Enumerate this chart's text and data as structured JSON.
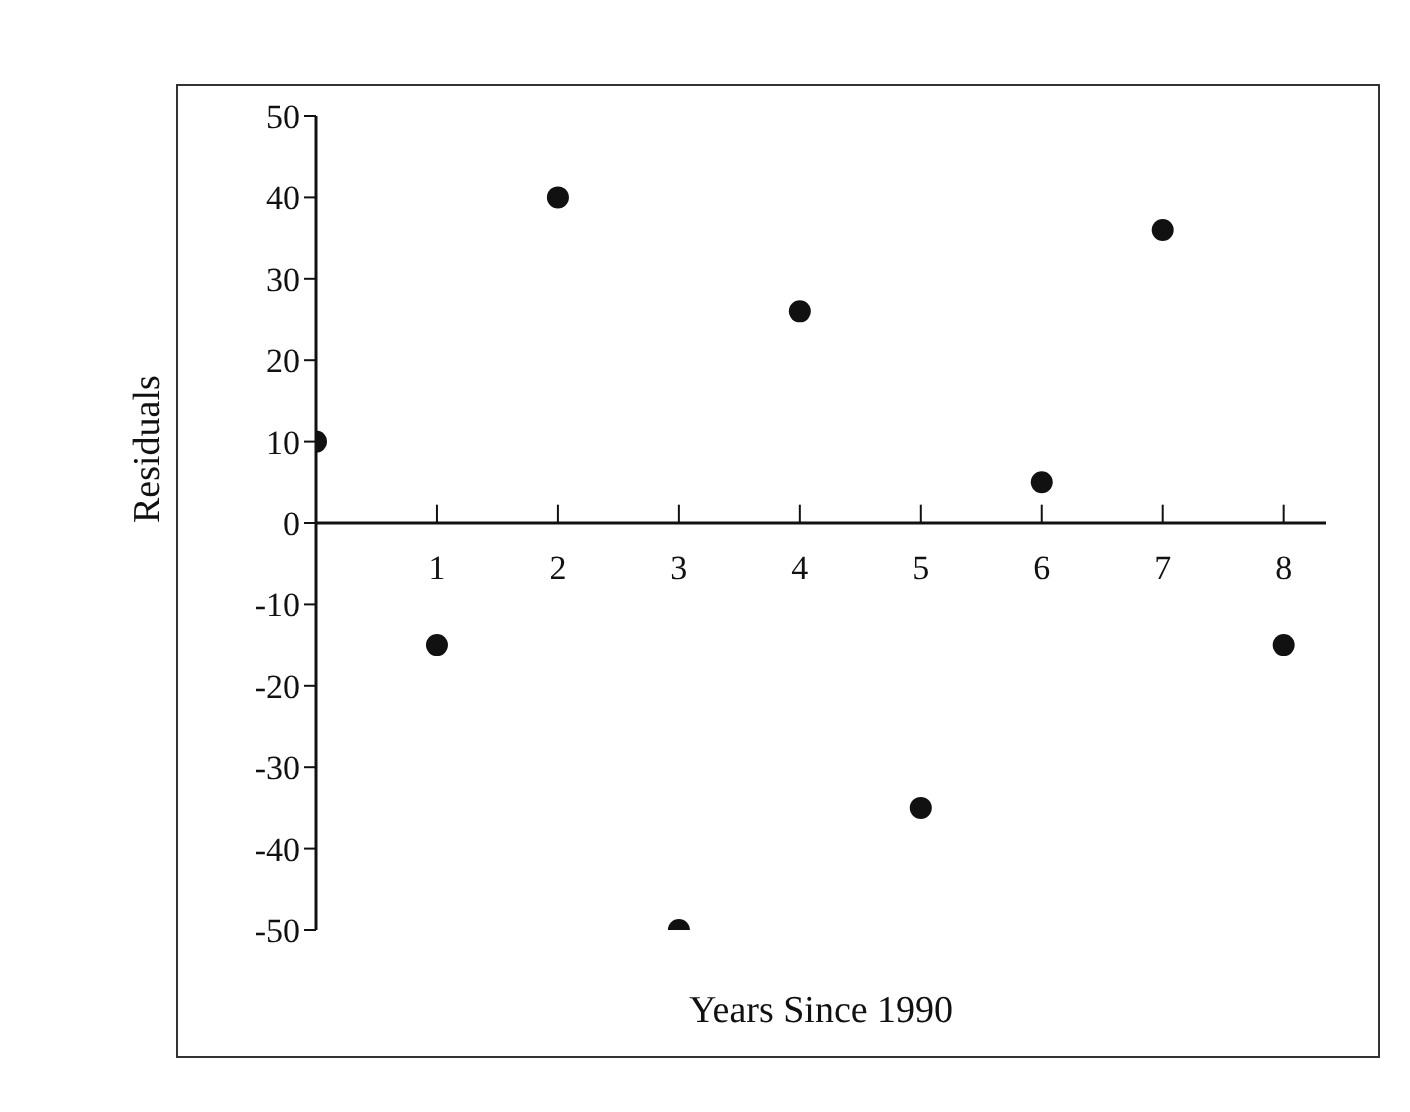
{
  "chart_data": {
    "type": "scatter",
    "xlabel": "Years Since 1990",
    "ylabel": "Residuals",
    "x": [
      0,
      1,
      2,
      3,
      4,
      5,
      6,
      7,
      8
    ],
    "series": [
      {
        "color": "#111111",
        "values": [
          10,
          -15,
          40,
          -50,
          26,
          -35,
          5,
          36,
          -15
        ]
      }
    ],
    "xlim": [
      0,
      8.35
    ],
    "xticks": [
      1,
      2,
      3,
      4,
      5,
      6,
      7,
      8
    ],
    "ylim": [
      -50,
      50
    ],
    "yticks": [
      -50,
      -40,
      -30,
      -20,
      -10,
      0,
      10,
      20,
      30,
      40,
      50
    ],
    "marker": "circle",
    "grid": false,
    "legend": false
  }
}
